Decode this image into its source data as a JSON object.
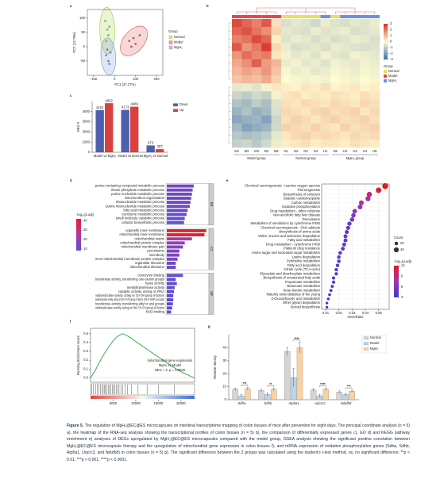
{
  "chart_data": [
    {
      "type": "scatter",
      "panel": "a",
      "xlabel": "PC1 (37.27%)",
      "ylabel": "PC2 (13.78%)",
      "xlim": [
        -130,
        230
      ],
      "ylim": [
        -100,
        130
      ],
      "xticks": [
        -100,
        0,
        100,
        200
      ],
      "yticks": [
        -50,
        0,
        50,
        100
      ],
      "legend_title": "Group",
      "series": [
        {
          "name": "Normal",
          "color": "#9ccc3c",
          "x": [
            -45,
            -35,
            -30,
            -25,
            -40
          ],
          "values": [
            90,
            60,
            40,
            70,
            20
          ]
        },
        {
          "name": "Model",
          "color": "#e0474c",
          "x": [
            70,
            90,
            100,
            120,
            80
          ],
          "values": [
            20,
            30,
            10,
            40,
            0
          ]
        },
        {
          "name": "MgH₂",
          "color": "#6d8fd6",
          "x": [
            -40,
            -30,
            -20,
            -35,
            -25
          ],
          "values": [
            -30,
            -50,
            -20,
            -10,
            -60
          ]
        }
      ]
    },
    {
      "type": "heatmap",
      "panel": "b",
      "columns": [
        "M1",
        "M2",
        "M3",
        "M4",
        "M5",
        "N1",
        "N2",
        "N3",
        "N4",
        "H1",
        "N5",
        "H2",
        "H3",
        "H4",
        "H5"
      ],
      "column_groups": [
        "Model",
        "Model",
        "Model",
        "Model",
        "Model",
        "Normal",
        "Normal",
        "Normal",
        "Normal",
        "MgH₂",
        "Normal",
        "MgH₂",
        "MgH₂",
        "MgH₂",
        "MgH₂"
      ],
      "group_labels": [
        "Model group",
        "Normal group",
        "MgH₂ group"
      ],
      "legend_title": "Group",
      "legend": [
        "Normal",
        "Model",
        "MgH₂"
      ],
      "group_colors": [
        "#e8e05a",
        "#e0474c",
        "#6d8fd6"
      ],
      "color_lim": [
        -3,
        3
      ],
      "color_ticks": [
        3,
        2,
        1,
        0,
        -1,
        -2,
        -3
      ],
      "colormap": [
        "#3a6fb5",
        "#fffbd0",
        "#d73027"
      ],
      "values": [
        [
          2.6,
          2.2,
          1.8,
          2.4,
          0.4,
          -0.6,
          -0.4,
          -0.5,
          -0.7,
          -0.3,
          -0.5,
          -0.6,
          -0.4,
          -0.5,
          -0.3
        ],
        [
          2.2,
          2.5,
          2.0,
          1.6,
          0.6,
          -0.4,
          -0.5,
          -0.6,
          -0.3,
          -0.5,
          -0.4,
          -0.3,
          -0.6,
          -0.5,
          -0.4
        ],
        [
          1.8,
          2.0,
          2.6,
          2.2,
          0.2,
          -0.5,
          -0.3,
          -0.4,
          -0.6,
          -0.4,
          -0.6,
          -0.5,
          -0.3,
          -0.4,
          -0.6
        ],
        [
          2.4,
          1.5,
          1.9,
          2.8,
          0.5,
          -0.3,
          -0.6,
          -0.5,
          -0.4,
          -0.6,
          -0.3,
          -0.4,
          -0.5,
          -0.6,
          -0.5
        ],
        [
          1.5,
          2.1,
          1.7,
          1.9,
          0.3,
          -0.2,
          -0.4,
          -0.3,
          -0.5,
          -0.2,
          -0.4,
          -0.5,
          -0.2,
          -0.3,
          -0.4
        ],
        [
          1.2,
          1.6,
          2.3,
          1.4,
          1.0,
          -0.3,
          -0.2,
          -0.4,
          -0.3,
          -0.5,
          -0.2,
          -0.3,
          -0.4,
          -0.2,
          -0.3
        ],
        [
          1.0,
          1.3,
          1.1,
          1.5,
          0.8,
          -0.1,
          -0.3,
          -0.2,
          -0.4,
          -0.3,
          -0.1,
          -0.2,
          -0.3,
          -0.1,
          -0.2
        ],
        [
          0.8,
          1.0,
          0.9,
          1.2,
          0.6,
          0.0,
          -0.1,
          -0.2,
          -0.1,
          -0.2,
          0.0,
          -0.1,
          -0.2,
          0.0,
          -0.1
        ],
        [
          -0.4,
          -0.3,
          -0.5,
          -0.2,
          0.3,
          0.2,
          0.1,
          0.3,
          0.2,
          0.4,
          0.1,
          0.2,
          0.3,
          0.1,
          0.2
        ],
        [
          -0.8,
          -1.0,
          -0.7,
          -0.9,
          -0.2,
          0.3,
          0.4,
          0.2,
          0.3,
          0.2,
          0.4,
          0.3,
          0.2,
          0.4,
          0.3
        ],
        [
          -1.2,
          -1.4,
          -1.0,
          -1.3,
          -0.5,
          0.4,
          0.3,
          0.5,
          0.4,
          0.3,
          0.5,
          0.4,
          0.3,
          0.5,
          0.4
        ],
        [
          -1.5,
          -1.2,
          -1.6,
          -1.4,
          -0.6,
          0.5,
          0.4,
          0.3,
          0.5,
          0.6,
          0.4,
          0.5,
          0.6,
          0.3,
          0.5
        ],
        [
          -1.8,
          -1.6,
          -1.5,
          -1.9,
          -0.8,
          0.4,
          0.6,
          0.5,
          0.3,
          0.5,
          0.6,
          0.4,
          0.5,
          0.6,
          0.4
        ],
        [
          -1.4,
          -1.9,
          -1.7,
          -1.5,
          -0.7,
          0.6,
          0.5,
          0.4,
          0.6,
          0.4,
          0.3,
          0.6,
          0.4,
          0.5,
          0.6
        ],
        [
          -1.1,
          -1.3,
          -1.2,
          -1.0,
          -0.4,
          0.3,
          0.5,
          0.6,
          0.4,
          0.5,
          0.4,
          0.3,
          0.5,
          0.4,
          0.5
        ],
        [
          -0.9,
          -0.8,
          -1.1,
          -0.7,
          -0.3,
          0.2,
          0.3,
          0.4,
          0.2,
          0.3,
          0.3,
          0.2,
          0.4,
          0.3,
          0.2
        ]
      ]
    },
    {
      "type": "bar",
      "panel": "c",
      "ylabel": "DEG #",
      "categories": [
        "Model vs MgH₂",
        "Model vs Normal",
        "MgH₂ vs Normal"
      ],
      "ylim": [
        0,
        5000
      ],
      "yticks": [
        0,
        1000,
        2000,
        3000,
        4000
      ],
      "series": [
        {
          "name": "Down",
          "color": "#4e5fae",
          "values": [
            4152,
            4173,
            673
          ]
        },
        {
          "name": "Up",
          "color": "#d94040",
          "values": [
            4832,
            4489,
            307
          ]
        }
      ]
    },
    {
      "type": "bar",
      "orientation": "horizontal",
      "panel": "d",
      "xlim": [
        0,
        115
      ],
      "colorbar_title": "-log₁₀(p.adj)",
      "color_lim": [
        8,
        42
      ],
      "color_ticks": [
        40,
        30,
        20,
        10
      ],
      "colormap": [
        "#5a4fd0",
        "#b03aa0",
        "#e8202a"
      ],
      "sections": [
        {
          "name": "BP",
          "categories": [
            "purine-containing compound metabolic process",
            "ribose phosphate metabolic process",
            "purine nucleotide metabolic process",
            "mitochondrion organization",
            "ribonucleotide metabolic process",
            "purine ribonucleotide metabolic process",
            "fatty acid metabolic process",
            "coenzyme metabolic process",
            "small molecule catabolic process",
            "cofactor biosynthetic process"
          ],
          "values": [
            75,
            72,
            70,
            68,
            66,
            64,
            58,
            55,
            50,
            48
          ],
          "color_values": [
            14,
            13,
            13,
            12,
            12,
            12,
            11,
            10,
            10,
            10
          ]
        },
        {
          "name": "CC",
          "categories": [
            "organelle inner membrane",
            "mitochondrial inner membrane",
            "mitochondrial matrix",
            "mitochondrial protein complex",
            "mitochondrial membrane part",
            "peroxisome",
            "microbody",
            "inner mitochondrial membrane protein complex",
            "organellar ribosome",
            "mitochondrial ribosome"
          ],
          "values": [
            110,
            105,
            70,
            50,
            45,
            35,
            35,
            30,
            25,
            25
          ],
          "color_values": [
            42,
            40,
            22,
            18,
            16,
            15,
            15,
            14,
            13,
            12
          ]
        },
        {
          "name": "MF",
          "categories": [
            "coenzyme binding",
            "transferase activity, transferring one-carbon groups",
            "lyase activity",
            "methyltransferase activity",
            "catalytic activity, acting on RNA",
            "oxidoreductase activity, acting on CH-OH group of donors",
            "oxidoreductase activity, acting on the CH-OH group of donors, NAD or NADP as acceptor",
            "transferase activity, transferring alkyl or aryl groups",
            "oxidoreductase activity, acting on the CH-CH group of donors",
            "NAD binding"
          ],
          "values": [
            45,
            25,
            28,
            22,
            20,
            18,
            18,
            17,
            15,
            12
          ],
          "color_values": [
            10,
            9,
            9,
            9,
            9,
            8,
            8,
            8,
            8,
            8
          ]
        }
      ]
    },
    {
      "type": "dot",
      "panel": "e",
      "xlabel": "GeneRatio",
      "grid": true,
      "xlim": [
        0.007,
        0.058
      ],
      "xticks": [
        0.01,
        0.02,
        0.03,
        0.04,
        0.05
      ],
      "categories": [
        "Chemical carcinogenesis - reactive oxygen species",
        "Thermogenesis",
        "Biosynthesis of cofactors",
        "Diabetic cardiomyopathy",
        "Carbon metabolism",
        "Oxidative phosphorylation",
        "Drug metabolism - other enzymes",
        "Non-alcoholic fatty liver disease",
        "Peroxisome",
        "Metabolism of xenobiotics by cytochrome P450",
        "Chemical carcinogenesis - DNA adducts",
        "Biosynthesis of amino acids",
        "Valine, leucine and isoleucine degradation",
        "Fatty acid metabolism",
        "Drug metabolism - cytochrome P450",
        "Platinum drug resistance",
        "Amino sugar and nucleotide sugar metabolism",
        "Lysine degradation",
        "Pyrimidine metabolism",
        "Fatty acid degradation",
        "Citrate cycle (TCA cycle)",
        "Glyoxylate and dicarboxylate metabolism",
        "Biosynthesis of unsaturated fatty acids",
        "Propanoate metabolism",
        "Butanoate metabolism",
        "beta-Alanine metabolism",
        "Maturity onset diabetes of the young",
        "2-Oxocarboxylic acid metabolism",
        "Other glycan degradation",
        "Steroid biosynthesis"
      ],
      "values": [
        0.055,
        0.05,
        0.043,
        0.042,
        0.037,
        0.036,
        0.032,
        0.031,
        0.03,
        0.028,
        0.027,
        0.026,
        0.025,
        0.025,
        0.024,
        0.023,
        0.021,
        0.02,
        0.02,
        0.019,
        0.018,
        0.018,
        0.016,
        0.016,
        0.015,
        0.014,
        0.013,
        0.012,
        0.011,
        0.011
      ],
      "sizes": [
        55,
        50,
        43,
        42,
        37,
        36,
        32,
        31,
        30,
        28,
        27,
        26,
        25,
        25,
        24,
        23,
        21,
        20,
        20,
        19,
        18,
        18,
        16,
        16,
        15,
        14,
        13,
        12,
        11,
        11
      ],
      "color_values": [
        12,
        11,
        9,
        8,
        8,
        7,
        6,
        6,
        6,
        5,
        5,
        5,
        5,
        5,
        5,
        4,
        4,
        4,
        4,
        4,
        4,
        4,
        3.5,
        3.5,
        3.5,
        3.5,
        3,
        3,
        3,
        3
      ],
      "size_title": "Count",
      "size_ticks": [
        20,
        40
      ],
      "colorbar_title": "-log₁₀(p.adj)",
      "color_lim": [
        3,
        12
      ],
      "color_ticks": [
        12,
        9,
        6,
        3
      ],
      "colormap": [
        "#3b3bd6",
        "#a035b0",
        "#e41a1c"
      ]
    },
    {
      "type": "line",
      "panel": "f",
      "ylabel": "Running Enrichment Score",
      "color": "#3cb043",
      "xlim": [
        0,
        23000
      ],
      "ylim": [
        -0.05,
        0.56
      ],
      "xticks": [
        5000,
        10000,
        15000,
        20000
      ],
      "yticks": [
        {
          "value": 0,
          "label": "0.0"
        },
        0.1,
        0.2,
        0.3,
        0.4,
        0.5
      ],
      "x": [
        0,
        1000,
        2000,
        3000,
        4000,
        5000,
        6000,
        7000,
        8000,
        9000,
        10000,
        12000,
        14000,
        16000,
        18000,
        20000,
        22000,
        23000
      ],
      "values": [
        0,
        0.08,
        0.18,
        0.27,
        0.35,
        0.42,
        0.47,
        0.5,
        0.48,
        0.45,
        0.41,
        0.34,
        0.27,
        0.2,
        0.13,
        0.07,
        0.02,
        0
      ],
      "hits": [
        300,
        600,
        1100,
        1500,
        1800,
        2200,
        2500,
        2800,
        3100,
        3300,
        3600,
        3900,
        4200,
        4500,
        4800,
        5100,
        5400,
        5700,
        6000,
        6300,
        6700,
        7100,
        7600,
        8200,
        9000,
        10500,
        12500,
        15000,
        18500
      ],
      "annotations": [
        "mitochondrial gene expression",
        "MgH₂ vs Model",
        "NES = 2, p = 0.0036"
      ]
    },
    {
      "type": "bar",
      "panel": "g",
      "ylabel": "Relative density",
      "categories": [
        "Sdha",
        "Sdhb",
        "Atp5a1",
        "Uqcrc2",
        "Ndufb8"
      ],
      "ylim": [
        0,
        50
      ],
      "yticks": [
        0,
        10,
        20,
        30,
        40
      ],
      "series": [
        {
          "name": "Normal",
          "color": "#d4d4d4",
          "values": [
            8,
            7,
            37,
            7.5,
            6
          ],
          "errors": [
            1,
            1,
            3,
            1,
            0.8
          ]
        },
        {
          "name": "Model",
          "color": "#bcd4e6",
          "values": [
            3,
            4,
            17,
            3,
            4
          ],
          "errors": [
            1,
            1.2,
            7,
            1,
            0.8
          ]
        },
        {
          "name": "MgH₂",
          "color": "#fdd0a2",
          "values": [
            8.5,
            8,
            40,
            8,
            6.5
          ],
          "errors": [
            1,
            1,
            4,
            0.8,
            0.8
          ]
        }
      ],
      "significance": [
        "***",
        "**",
        "****",
        "****",
        "***"
      ]
    }
  ],
  "caption": {
    "label": "Figure 5.",
    "text": "The regulation of MgH₂@EC@ES microcapsules on intestinal transcriptome mapping of colon tissues of mice after prevention for eight days. The principal coordinate analysis (n = 5) a), the heatmap of the RNA-seq analysis showing the transcriptional profiles of colon tissues (n = 5) b), the comparison of differentially expressed genes c), GO d) and KEGG pathway enrichment e) analyses of DEGs upregulated by MgH₂@EC@ES microcapsules compared with the model group, GSEA analysis showing the significant positive correlation between MgH₂@EC@ES microcapsule therapy and the upregulation of mitochondrial gene expression in colon tissues f), and mRNA expression of oxidative phosphorylation genes (Sdha, Sdhb, Atp5a1, Uqcrc2, and Ndufb8) in colon tissues (n = 5) g). The significant difference between the 2 groups was calculated using the student's t-test method. ns, no significant difference; **p < 0.01, ***p < 0.001, ****p < 0.0001."
  }
}
